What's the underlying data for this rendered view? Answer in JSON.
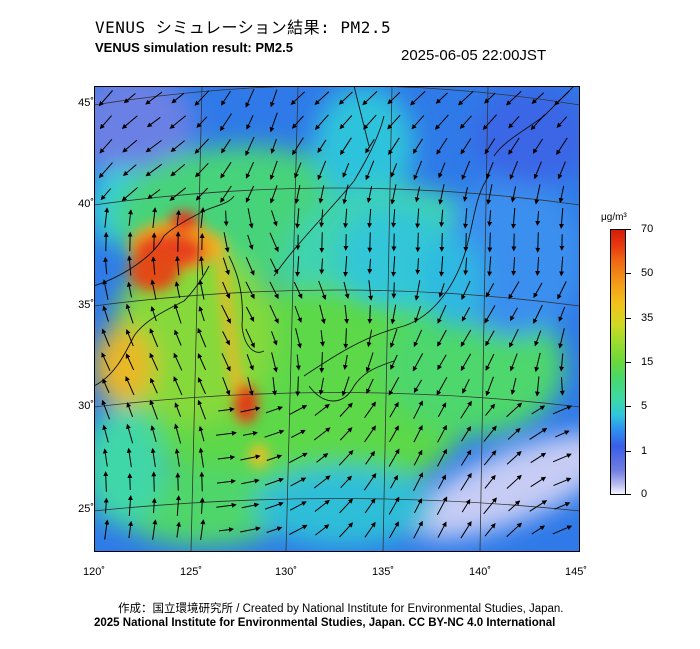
{
  "header": {
    "title_ja": "VENUS シミュレーション結果: PM2.5",
    "title_en": "VENUS simulation result: PM2.5",
    "timestamp": "2025-06-05 22:00JST"
  },
  "map": {
    "latitude_labels": [
      "45˚",
      "40˚",
      "35˚",
      "30˚",
      "25˚"
    ],
    "longitude_labels": [
      "120˚",
      "125˚",
      "130˚",
      "135˚",
      "140˚",
      "145˚"
    ],
    "variable": "PM2.5",
    "background_color": "#2f6fe8",
    "hotspot_color": "#e8301a"
  },
  "colorbar": {
    "unit": "μg/m³",
    "labels": [
      "70",
      "50",
      "35",
      "15",
      "5",
      "1",
      "0"
    ]
  },
  "footer": {
    "credit_line1": "作成：国立環境研究所 / Created by National Institute for Environmental Studies, Japan.",
    "credit_line2": "2025 National Institute for Environmental Studies, Japan. CC BY-NC 4.0 International"
  }
}
